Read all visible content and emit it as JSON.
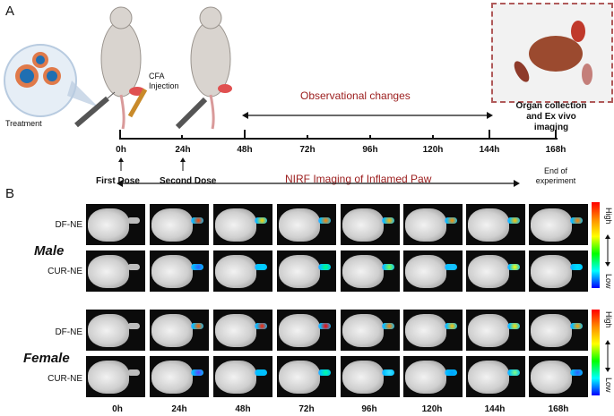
{
  "panel_a": {
    "label": "A",
    "treatment_label": "Treatment",
    "cfa_label": "CFA\nInjection",
    "observational_changes": "Observational changes",
    "organ_collection": "Organ collection\nand Ex vivo\nimaging",
    "timepoints": [
      "0h",
      "24h",
      "48h",
      "72h",
      "96h",
      "120h",
      "144h",
      "168h"
    ],
    "first_dose": "First Dose",
    "second_dose": "Second Dose",
    "nirf_label": "NIRF Imaging of Inflamed Paw",
    "end_label": "End of\nexperiment"
  },
  "panel_b": {
    "label": "B",
    "groups": [
      {
        "sex": "Male",
        "rows": [
          "DF-NE",
          "CUR-NE"
        ]
      },
      {
        "sex": "Female",
        "rows": [
          "DF-NE",
          "CUR-NE"
        ]
      }
    ],
    "timepoints": [
      "0h",
      "24h",
      "48h",
      "72h",
      "96h",
      "120h",
      "144h",
      "168h"
    ],
    "colorbar_high": "High",
    "colorbar_low": "Low",
    "colors": {
      "accent_red": "#9b1c1c"
    }
  }
}
